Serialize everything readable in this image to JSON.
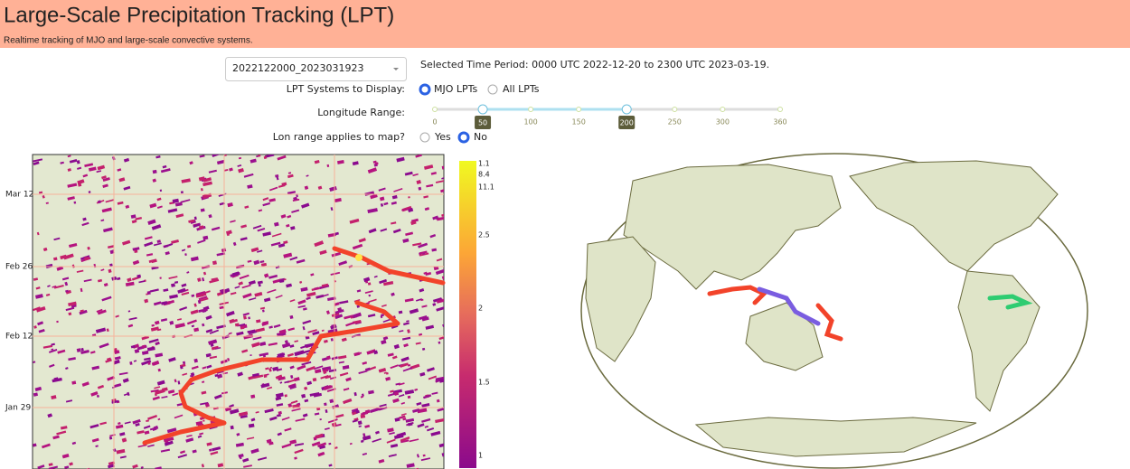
{
  "header": {
    "title": "Large-Scale Precipitation Tracking (LPT)",
    "subtitle": "Realtime tracking of MJO and large-scale convective systems."
  },
  "controls": {
    "dataset": "2022122000_2023031923",
    "time_period": "Selected Time Period: 0000 UTC 2022-12-20 to 2300 UTC 2023-03-19.",
    "systems_label": "LPT Systems to Display:",
    "systems_options": [
      "MJO LPTs",
      "All LPTs"
    ],
    "lon_label": "Longitude Range:",
    "lon_marks": [
      0,
      50,
      100,
      150,
      200,
      250,
      300,
      360
    ],
    "lon_range": [
      50,
      200
    ],
    "map_label": "Lon range applies to map?",
    "map_options": [
      "Yes",
      "No"
    ]
  },
  "hovmoller": {
    "date_labels": [
      "Mar 12",
      "Feb 26",
      "Feb 12",
      "Jan 29"
    ],
    "colorbar_labels": [
      "1.1",
      "8.4",
      "11.1",
      "2.5",
      "2",
      "1.5",
      "1"
    ]
  }
}
